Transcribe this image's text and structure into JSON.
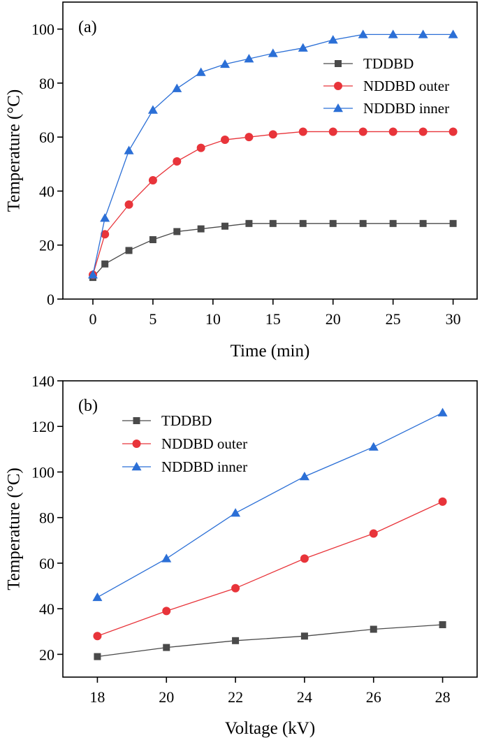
{
  "colors": {
    "tddbd": "#4a4a4a",
    "outer": "#e8343a",
    "inner": "#2b6fd6",
    "axis": "#000000"
  },
  "chart_data": [
    {
      "type": "line",
      "panel_label": "(a)",
      "xlabel": "Time (min)",
      "ylabel": "Temperature (°C)",
      "xlim": [
        -2.5,
        32
      ],
      "ylim": [
        0,
        110
      ],
      "x_ticks": [
        0,
        5,
        10,
        15,
        20,
        25,
        30
      ],
      "y_ticks": [
        0,
        20,
        40,
        60,
        80,
        100
      ],
      "legend_position": "top-right",
      "series": [
        {
          "name": "TDDBD",
          "marker": "square",
          "color": "#4a4a4a",
          "x": [
            0,
            1,
            3,
            5,
            7,
            9,
            11,
            13,
            15,
            17.5,
            20,
            22.5,
            25,
            27.5,
            30
          ],
          "y": [
            8,
            13,
            18,
            22,
            25,
            26,
            27,
            28,
            28,
            28,
            28,
            28,
            28,
            28,
            28
          ]
        },
        {
          "name": "NDDBD outer",
          "marker": "circle",
          "color": "#e8343a",
          "x": [
            0,
            1,
            3,
            5,
            7,
            9,
            11,
            13,
            15,
            17.5,
            20,
            22.5,
            25,
            27.5,
            30
          ],
          "y": [
            9,
            24,
            35,
            44,
            51,
            56,
            59,
            60,
            61,
            62,
            62,
            62,
            62,
            62,
            62
          ]
        },
        {
          "name": "NDDBD inner",
          "marker": "triangle",
          "color": "#2b6fd6",
          "x": [
            0,
            1,
            3,
            5,
            7,
            9,
            11,
            13,
            15,
            17.5,
            20,
            22.5,
            25,
            27.5,
            30
          ],
          "y": [
            9,
            30,
            55,
            70,
            78,
            84,
            87,
            89,
            91,
            93,
            96,
            98,
            98,
            98,
            98
          ]
        }
      ]
    },
    {
      "type": "line",
      "panel_label": "(b)",
      "xlabel": "Voltage (kV)",
      "ylabel": "Temperature (°C)",
      "xlim": [
        17,
        29
      ],
      "ylim": [
        10,
        140
      ],
      "x_ticks": [
        18,
        20,
        22,
        24,
        26,
        28
      ],
      "y_ticks": [
        20,
        40,
        60,
        80,
        100,
        120,
        140
      ],
      "legend_position": "top-left",
      "series": [
        {
          "name": "TDDBD",
          "marker": "square",
          "color": "#4a4a4a",
          "x": [
            18,
            20,
            22,
            24,
            26,
            28
          ],
          "y": [
            19,
            23,
            26,
            28,
            31,
            33
          ]
        },
        {
          "name": "NDDBD outer",
          "marker": "circle",
          "color": "#e8343a",
          "x": [
            18,
            20,
            22,
            24,
            26,
            28
          ],
          "y": [
            28,
            39,
            49,
            62,
            73,
            87
          ]
        },
        {
          "name": "NDDBD inner",
          "marker": "triangle",
          "color": "#2b6fd6",
          "x": [
            18,
            20,
            22,
            24,
            26,
            28
          ],
          "y": [
            45,
            62,
            82,
            98,
            111,
            126
          ]
        }
      ]
    }
  ]
}
